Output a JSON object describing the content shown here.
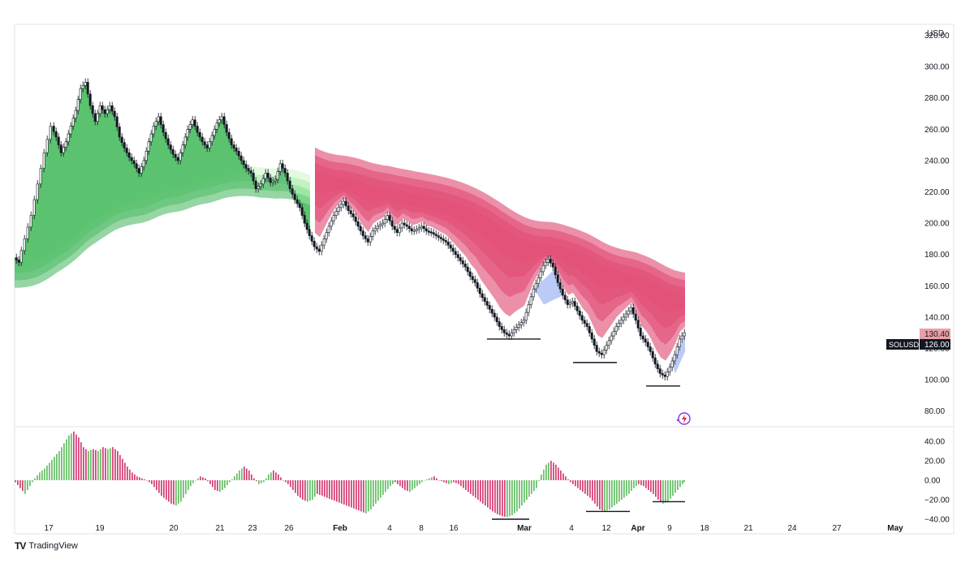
{
  "chart_data": {
    "type": "candlestick",
    "symbol": "SOLUSD",
    "currency": "USD",
    "last_price": "126.00",
    "other_price": "130.40",
    "price_axis": {
      "ylim": [
        70,
        327
      ],
      "ticks": [
        "320.00",
        "300.00",
        "280.00",
        "260.00",
        "240.00",
        "220.00",
        "200.00",
        "180.00",
        "160.00",
        "140.00",
        "120.00",
        "100.00",
        "80.00"
      ],
      "tick_values": [
        320,
        300,
        280,
        260,
        240,
        220,
        200,
        180,
        160,
        140,
        120,
        100,
        80
      ]
    },
    "time_axis": {
      "labels": [
        {
          "text": "17",
          "bold": false
        },
        {
          "text": "19",
          "bold": false
        },
        {
          "text": "20",
          "bold": false
        },
        {
          "text": "21",
          "bold": false
        },
        {
          "text": "23",
          "bold": false
        },
        {
          "text": "26",
          "bold": false
        },
        {
          "text": "Feb",
          "bold": true
        },
        {
          "text": "4",
          "bold": false
        },
        {
          "text": "8",
          "bold": false
        },
        {
          "text": "16",
          "bold": false
        },
        {
          "text": "Mar",
          "bold": true
        },
        {
          "text": "4",
          "bold": false
        },
        {
          "text": "12",
          "bold": false
        },
        {
          "text": "Apr",
          "bold": true
        },
        {
          "text": "9",
          "bold": false
        },
        {
          "text": "18",
          "bold": false
        },
        {
          "text": "21",
          "bold": false
        },
        {
          "text": "24",
          "bold": false
        },
        {
          "text": "27",
          "bold": false
        },
        {
          "text": "May",
          "bold": true
        }
      ]
    },
    "price_series": [
      [
        0,
        178
      ],
      [
        6,
        175
      ],
      [
        14,
        190
      ],
      [
        22,
        205
      ],
      [
        30,
        225
      ],
      [
        38,
        245
      ],
      [
        46,
        262
      ],
      [
        52,
        255
      ],
      [
        58,
        245
      ],
      [
        64,
        252
      ],
      [
        70,
        262
      ],
      [
        76,
        272
      ],
      [
        82,
        286
      ],
      [
        88,
        290
      ],
      [
        94,
        275
      ],
      [
        100,
        265
      ],
      [
        106,
        275
      ],
      [
        112,
        270
      ],
      [
        118,
        275
      ],
      [
        124,
        268
      ],
      [
        130,
        255
      ],
      [
        136,
        248
      ],
      [
        142,
        242
      ],
      [
        148,
        238
      ],
      [
        154,
        232
      ],
      [
        160,
        240
      ],
      [
        166,
        252
      ],
      [
        172,
        262
      ],
      [
        178,
        268
      ],
      [
        184,
        258
      ],
      [
        190,
        250
      ],
      [
        196,
        244
      ],
      [
        202,
        240
      ],
      [
        208,
        250
      ],
      [
        214,
        260
      ],
      [
        220,
        266
      ],
      [
        226,
        258
      ],
      [
        232,
        252
      ],
      [
        238,
        248
      ],
      [
        244,
        256
      ],
      [
        250,
        264
      ],
      [
        256,
        268
      ],
      [
        262,
        258
      ],
      [
        268,
        250
      ],
      [
        274,
        246
      ],
      [
        280,
        240
      ],
      [
        286,
        235
      ],
      [
        292,
        232
      ],
      [
        298,
        222
      ],
      [
        304,
        225
      ],
      [
        310,
        232
      ],
      [
        316,
        226
      ],
      [
        322,
        228
      ],
      [
        328,
        238
      ],
      [
        334,
        232
      ],
      [
        340,
        222
      ],
      [
        346,
        215
      ],
      [
        352,
        210
      ],
      [
        358,
        200
      ],
      [
        364,
        192
      ],
      [
        370,
        185
      ],
      [
        376,
        182
      ],
      [
        382,
        190
      ],
      [
        388,
        198
      ],
      [
        394,
        205
      ],
      [
        400,
        210
      ],
      [
        406,
        214
      ],
      [
        412,
        208
      ],
      [
        418,
        204
      ],
      [
        424,
        198
      ],
      [
        430,
        192
      ],
      [
        436,
        188
      ],
      [
        442,
        195
      ],
      [
        448,
        198
      ],
      [
        454,
        200
      ],
      [
        460,
        205
      ],
      [
        466,
        198
      ],
      [
        472,
        194
      ],
      [
        478,
        200
      ],
      [
        484,
        198
      ],
      [
        490,
        195
      ],
      [
        496,
        196
      ],
      [
        502,
        198
      ],
      [
        508,
        195
      ],
      [
        514,
        194
      ],
      [
        520,
        192
      ],
      [
        526,
        190
      ],
      [
        532,
        188
      ],
      [
        538,
        184
      ],
      [
        544,
        180
      ],
      [
        550,
        176
      ],
      [
        556,
        172
      ],
      [
        562,
        166
      ],
      [
        568,
        162
      ],
      [
        574,
        155
      ],
      [
        580,
        150
      ],
      [
        586,
        145
      ],
      [
        592,
        140
      ],
      [
        598,
        134
      ],
      [
        604,
        130
      ],
      [
        610,
        128
      ],
      [
        616,
        132
      ],
      [
        622,
        135
      ],
      [
        628,
        138
      ],
      [
        634,
        148
      ],
      [
        640,
        158
      ],
      [
        646,
        165
      ],
      [
        652,
        173
      ],
      [
        658,
        177
      ],
      [
        664,
        172
      ],
      [
        670,
        162
      ],
      [
        676,
        154
      ],
      [
        682,
        148
      ],
      [
        688,
        150
      ],
      [
        694,
        144
      ],
      [
        700,
        138
      ],
      [
        706,
        134
      ],
      [
        712,
        126
      ],
      [
        718,
        118
      ],
      [
        724,
        116
      ],
      [
        730,
        122
      ],
      [
        736,
        128
      ],
      [
        742,
        134
      ],
      [
        748,
        138
      ],
      [
        754,
        142
      ],
      [
        760,
        146
      ],
      [
        766,
        138
      ],
      [
        772,
        128
      ],
      [
        778,
        124
      ],
      [
        784,
        118
      ],
      [
        790,
        110
      ],
      [
        796,
        104
      ],
      [
        802,
        102
      ],
      [
        808,
        108
      ],
      [
        814,
        116
      ],
      [
        820,
        126
      ],
      [
        826,
        130
      ]
    ],
    "dev_series": [
      [
        0,
        -2
      ],
      [
        6,
        -8
      ],
      [
        12,
        -14
      ],
      [
        18,
        -6
      ],
      [
        24,
        2
      ],
      [
        30,
        8
      ],
      [
        36,
        12
      ],
      [
        42,
        18
      ],
      [
        48,
        24
      ],
      [
        54,
        30
      ],
      [
        60,
        38
      ],
      [
        66,
        46
      ],
      [
        72,
        50
      ],
      [
        78,
        44
      ],
      [
        84,
        34
      ],
      [
        90,
        30
      ],
      [
        96,
        32
      ],
      [
        102,
        30
      ],
      [
        108,
        34
      ],
      [
        114,
        32
      ],
      [
        120,
        34
      ],
      [
        126,
        30
      ],
      [
        132,
        22
      ],
      [
        138,
        14
      ],
      [
        144,
        8
      ],
      [
        150,
        4
      ],
      [
        156,
        2
      ],
      [
        162,
        0
      ],
      [
        168,
        -4
      ],
      [
        174,
        -10
      ],
      [
        180,
        -16
      ],
      [
        186,
        -20
      ],
      [
        192,
        -24
      ],
      [
        198,
        -26
      ],
      [
        204,
        -22
      ],
      [
        210,
        -14
      ],
      [
        216,
        -6
      ],
      [
        222,
        0
      ],
      [
        228,
        4
      ],
      [
        234,
        2
      ],
      [
        240,
        -4
      ],
      [
        246,
        -10
      ],
      [
        252,
        -12
      ],
      [
        258,
        -8
      ],
      [
        264,
        -2
      ],
      [
        270,
        4
      ],
      [
        276,
        10
      ],
      [
        282,
        14
      ],
      [
        288,
        10
      ],
      [
        294,
        2
      ],
      [
        300,
        -4
      ],
      [
        306,
        -2
      ],
      [
        312,
        6
      ],
      [
        318,
        10
      ],
      [
        324,
        6
      ],
      [
        330,
        0
      ],
      [
        336,
        -4
      ],
      [
        342,
        -10
      ],
      [
        348,
        -16
      ],
      [
        354,
        -20
      ],
      [
        360,
        -22
      ],
      [
        366,
        -20
      ],
      [
        372,
        -14
      ],
      [
        378,
        -16
      ],
      [
        384,
        -18
      ],
      [
        390,
        -20
      ],
      [
        396,
        -22
      ],
      [
        402,
        -24
      ],
      [
        408,
        -26
      ],
      [
        414,
        -28
      ],
      [
        420,
        -30
      ],
      [
        426,
        -32
      ],
      [
        432,
        -34
      ],
      [
        438,
        -30
      ],
      [
        444,
        -24
      ],
      [
        450,
        -18
      ],
      [
        456,
        -12
      ],
      [
        462,
        -6
      ],
      [
        468,
        -2
      ],
      [
        474,
        -6
      ],
      [
        480,
        -10
      ],
      [
        486,
        -12
      ],
      [
        492,
        -8
      ],
      [
        498,
        -4
      ],
      [
        504,
        0
      ],
      [
        510,
        2
      ],
      [
        516,
        4
      ],
      [
        522,
        0
      ],
      [
        528,
        -2
      ],
      [
        534,
        -4
      ],
      [
        540,
        -2
      ],
      [
        546,
        -4
      ],
      [
        552,
        -8
      ],
      [
        558,
        -12
      ],
      [
        564,
        -16
      ],
      [
        570,
        -20
      ],
      [
        576,
        -24
      ],
      [
        582,
        -28
      ],
      [
        588,
        -32
      ],
      [
        594,
        -35
      ],
      [
        600,
        -37
      ],
      [
        606,
        -38
      ],
      [
        612,
        -36
      ],
      [
        618,
        -32
      ],
      [
        624,
        -26
      ],
      [
        630,
        -20
      ],
      [
        636,
        -14
      ],
      [
        642,
        -8
      ],
      [
        648,
        6
      ],
      [
        654,
        16
      ],
      [
        660,
        20
      ],
      [
        666,
        16
      ],
      [
        672,
        10
      ],
      [
        678,
        4
      ],
      [
        684,
        -2
      ],
      [
        690,
        -6
      ],
      [
        696,
        -10
      ],
      [
        702,
        -14
      ],
      [
        708,
        -18
      ],
      [
        714,
        -24
      ],
      [
        720,
        -30
      ],
      [
        726,
        -32
      ],
      [
        732,
        -30
      ],
      [
        738,
        -26
      ],
      [
        744,
        -22
      ],
      [
        750,
        -18
      ],
      [
        756,
        -14
      ],
      [
        762,
        -8
      ],
      [
        768,
        -4
      ],
      [
        774,
        -6
      ],
      [
        780,
        -10
      ],
      [
        786,
        -14
      ],
      [
        792,
        -20
      ],
      [
        798,
        -24
      ],
      [
        804,
        -22
      ],
      [
        810,
        -16
      ],
      [
        816,
        -10
      ],
      [
        822,
        -4
      ],
      [
        826,
        0
      ]
    ],
    "dev_axis": {
      "ylim": [
        -50,
        50
      ],
      "ticks": [
        "40.00",
        "20.00",
        "0.00",
        "−20.00",
        "−40.00"
      ],
      "tick_values": [
        40,
        20,
        0,
        -20,
        -40
      ]
    },
    "support_lines": [
      {
        "x0": 582,
        "x1": 648,
        "price": 126
      },
      {
        "x0": 688,
        "x1": 742,
        "price": 111
      },
      {
        "x0": 778,
        "x1": 820,
        "price": 96
      }
    ],
    "dev_support_lines": [
      {
        "x0": 588,
        "x1": 634,
        "value": -40
      },
      {
        "x0": 704,
        "x1": 758,
        "value": -32
      },
      {
        "x0": 786,
        "x1": 826,
        "value": -22
      }
    ]
  },
  "branding": {
    "name": "TradingView",
    "logo": "TV"
  },
  "colors": {
    "bull_band": "#4fc06a",
    "bear_band": "#e83a6f",
    "bull_bar": "#6cc26c",
    "bear_bar": "#d6457a",
    "price_tag_bg": "#131722",
    "other_tag_bg": "#e8a0a4"
  }
}
